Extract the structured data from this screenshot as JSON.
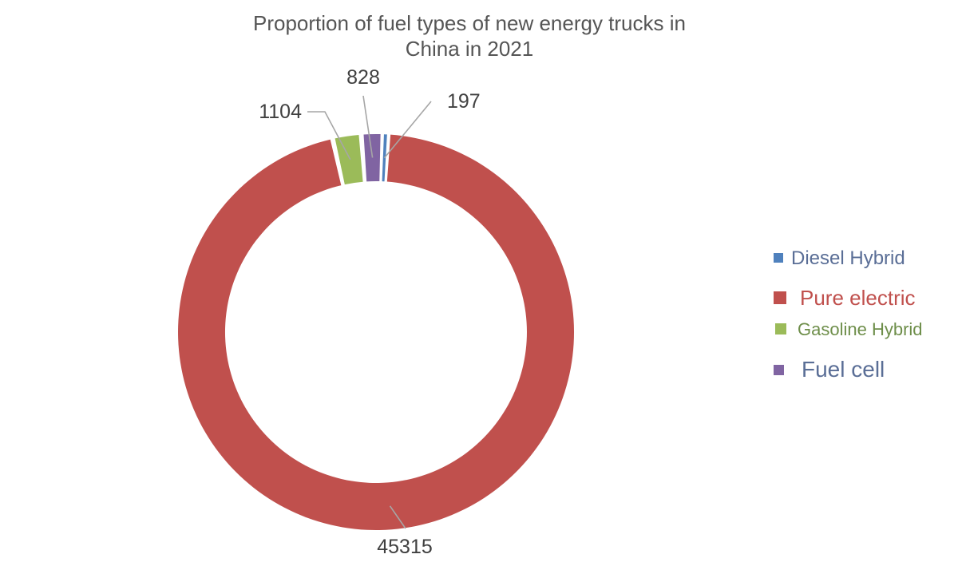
{
  "chart_data": {
    "type": "pie",
    "subtype": "donut",
    "title_lines": [
      "Proportion of fuel types of new energy trucks in",
      "China in 2021"
    ],
    "series": [
      {
        "name": "Diesel Hybrid",
        "value": 197,
        "label": "197",
        "color": "#4F81BD",
        "legend_text_color": "#5A6E96"
      },
      {
        "name": "Pure electric",
        "value": 45315,
        "label": "45315",
        "color": "#C0504D",
        "legend_text_color": "#C0504D"
      },
      {
        "name": "Gasoline Hybrid",
        "value": 1104,
        "label": "1104",
        "color": "#9BBB59",
        "legend_text_color": "#6E8E4A"
      },
      {
        "name": "Fuel cell",
        "value": 828,
        "label": "828",
        "color": "#8064A2",
        "legend_text_color": "#5A6E96"
      }
    ],
    "legend_position": "right"
  }
}
